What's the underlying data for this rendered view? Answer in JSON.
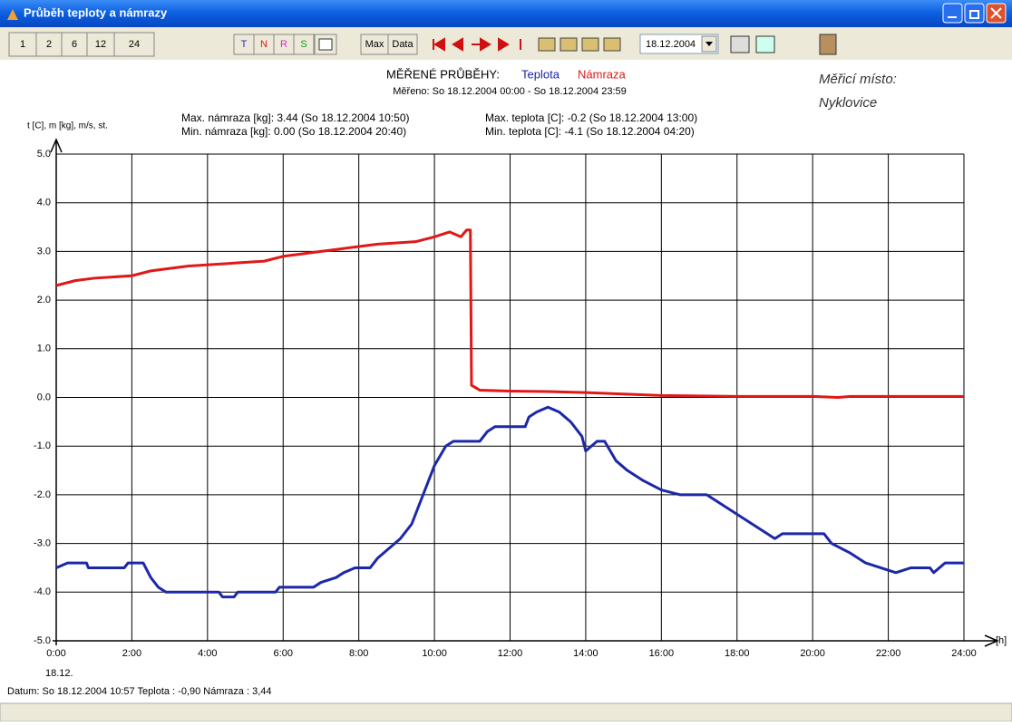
{
  "window": {
    "title": "Průběh teploty a námrazy"
  },
  "toolbar": {
    "ranges": [
      "1",
      "2",
      "6",
      "12",
      "24"
    ],
    "channels": [
      "T",
      "N",
      "R",
      "S"
    ],
    "views": [
      "Max",
      "Data"
    ],
    "date": "18.12.2004"
  },
  "chart_data": {
    "type": "line",
    "title": "MĚŘENÉ PRŮBĚHY:",
    "subtitle": "Měřeno: So 18.12.2004 00:00 - So 18.12.2004 23:59",
    "annotations": [
      "Max. námraza [kg]:  3.44   (So 18.12.2004 10:50)",
      "Min. námraza [kg]:  0.00   (So 18.12.2004 20:40)",
      "Max. teplota [C]:  -0.2   (So 18.12.2004 13:00)",
      "Min. teplota [C]:  -4.1   (So 18.12.2004 04:20)",
      "Měřicí místo:",
      "Nyklovice",
      "18.12."
    ],
    "y_label": "t [C], m [kg], m/s, st.",
    "x_label": "[h]",
    "xlim": [
      0,
      24
    ],
    "xticks": [
      {
        "value": 0,
        "label": "0:00"
      },
      {
        "value": 2,
        "label": "2:00"
      },
      {
        "value": 4,
        "label": "4:00"
      },
      {
        "value": 6,
        "label": "6:00"
      },
      {
        "value": 8,
        "label": "8:00"
      },
      {
        "value": 10,
        "label": "10:00"
      },
      {
        "value": 12,
        "label": "12:00"
      },
      {
        "value": 14,
        "label": "14:00"
      },
      {
        "value": 16,
        "label": "16:00"
      },
      {
        "value": 18,
        "label": "18:00"
      },
      {
        "value": 20,
        "label": "20:00"
      },
      {
        "value": 22,
        "label": "22:00"
      },
      {
        "value": 24,
        "label": "24:00"
      }
    ],
    "ylim": [
      -5,
      5
    ],
    "yticks": [
      {
        "value": 5,
        "label": "5.0"
      },
      {
        "value": 4,
        "label": "4.0"
      },
      {
        "value": 3,
        "label": "3.0"
      },
      {
        "value": 2,
        "label": "2.0"
      },
      {
        "value": 1,
        "label": "1.0"
      },
      {
        "value": 0,
        "label": "0.0"
      },
      {
        "value": -1,
        "label": "-1.0"
      },
      {
        "value": -2,
        "label": "-2.0"
      },
      {
        "value": -3,
        "label": "-3.0"
      },
      {
        "value": -4,
        "label": "-4.0"
      },
      {
        "value": -5,
        "label": "-5.0"
      }
    ],
    "grid": true,
    "series": [
      {
        "name": "Teplota",
        "color": "#1c28a8",
        "x": [
          0,
          0.3,
          0.8,
          0.85,
          1.8,
          1.9,
          2.3,
          2.5,
          2.7,
          2.9,
          4.3,
          4.4,
          4.7,
          4.8,
          5.8,
          5.9,
          6.8,
          7.0,
          7.4,
          7.6,
          7.9,
          8.3,
          8.5,
          8.8,
          9.1,
          9.4,
          9.6,
          9.8,
          10.0,
          10.3,
          10.5,
          11.2,
          11.4,
          11.6,
          12.4,
          12.5,
          12.7,
          13.0,
          13.3,
          13.6,
          13.9,
          14.0,
          14.3,
          14.5,
          14.8,
          15.1,
          15.5,
          16.0,
          16.5,
          17.2,
          17.6,
          18.0,
          18.4,
          18.8,
          19.0,
          19.2,
          20.3,
          20.5,
          21.0,
          21.4,
          21.8,
          22.2,
          22.6,
          23.1,
          23.2,
          23.5,
          24
        ],
        "values": [
          -3.5,
          -3.4,
          -3.4,
          -3.5,
          -3.5,
          -3.4,
          -3.4,
          -3.7,
          -3.9,
          -4.0,
          -4.0,
          -4.1,
          -4.1,
          -4.0,
          -4.0,
          -3.9,
          -3.9,
          -3.8,
          -3.7,
          -3.6,
          -3.5,
          -3.5,
          -3.3,
          -3.1,
          -2.9,
          -2.6,
          -2.2,
          -1.8,
          -1.4,
          -1.0,
          -0.9,
          -0.9,
          -0.7,
          -0.6,
          -0.6,
          -0.4,
          -0.3,
          -0.2,
          -0.3,
          -0.5,
          -0.8,
          -1.1,
          -0.9,
          -0.9,
          -1.3,
          -1.5,
          -1.7,
          -1.9,
          -2.0,
          -2.0,
          -2.2,
          -2.4,
          -2.6,
          -2.8,
          -2.9,
          -2.8,
          -2.8,
          -3.0,
          -3.2,
          -3.4,
          -3.5,
          -3.6,
          -3.5,
          -3.5,
          -3.6,
          -3.4,
          -3.4
        ]
      },
      {
        "name": "Námraza",
        "color": "#e01818",
        "x": [
          0,
          0.5,
          1,
          2,
          2.5,
          3.5,
          4.5,
          5.5,
          6,
          6.5,
          7,
          7.5,
          8,
          8.5,
          9.5,
          10,
          10.4,
          10.7,
          10.85,
          10.95,
          10.98,
          11.2,
          12,
          13,
          14,
          15,
          16,
          17,
          18,
          20,
          20.67,
          21,
          24
        ],
        "values": [
          2.3,
          2.4,
          2.45,
          2.5,
          2.6,
          2.7,
          2.75,
          2.8,
          2.9,
          2.95,
          3.0,
          3.05,
          3.1,
          3.15,
          3.2,
          3.3,
          3.4,
          3.3,
          3.44,
          3.44,
          0.25,
          0.15,
          0.13,
          0.12,
          0.1,
          0.07,
          0.04,
          0.03,
          0.02,
          0.02,
          0,
          0.02,
          0.02
        ]
      }
    ]
  },
  "status": "Datum: So 18.12.2004 10:57  Teplota : -0,90  Námraza : 3,44"
}
